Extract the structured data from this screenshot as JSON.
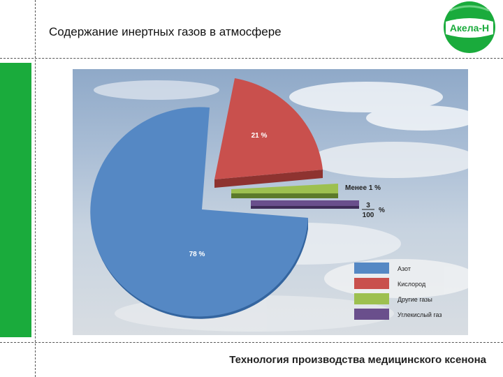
{
  "header": {
    "title": "Содержание инертных газов в атмосфере"
  },
  "logo": {
    "text": "Акела-Н",
    "color": "#1aab3c"
  },
  "footer": {
    "text": "Технология производства медицинского ксенона"
  },
  "chart_data": {
    "type": "pie",
    "style": "3d-exploded",
    "slices": [
      {
        "name": "Азот",
        "value": 78,
        "label": "78 %",
        "color": "#5588c4"
      },
      {
        "name": "Кислород",
        "value": 21,
        "label": "21 %",
        "color": "#c9504d"
      },
      {
        "name": "Другие газы",
        "value": 0.97,
        "label": "Менее 1 %",
        "color": "#9dc050"
      },
      {
        "name": "Углекислый газ",
        "value": 0.03,
        "label_num": "3",
        "label_den": "100",
        "label_unit": "%",
        "color": "#6a4f8c"
      }
    ],
    "legend": [
      "Азот",
      "Кислород",
      "Другие газы",
      "Углекислый газ"
    ],
    "legend_position": "bottom-right",
    "background": "sky with clouds"
  }
}
